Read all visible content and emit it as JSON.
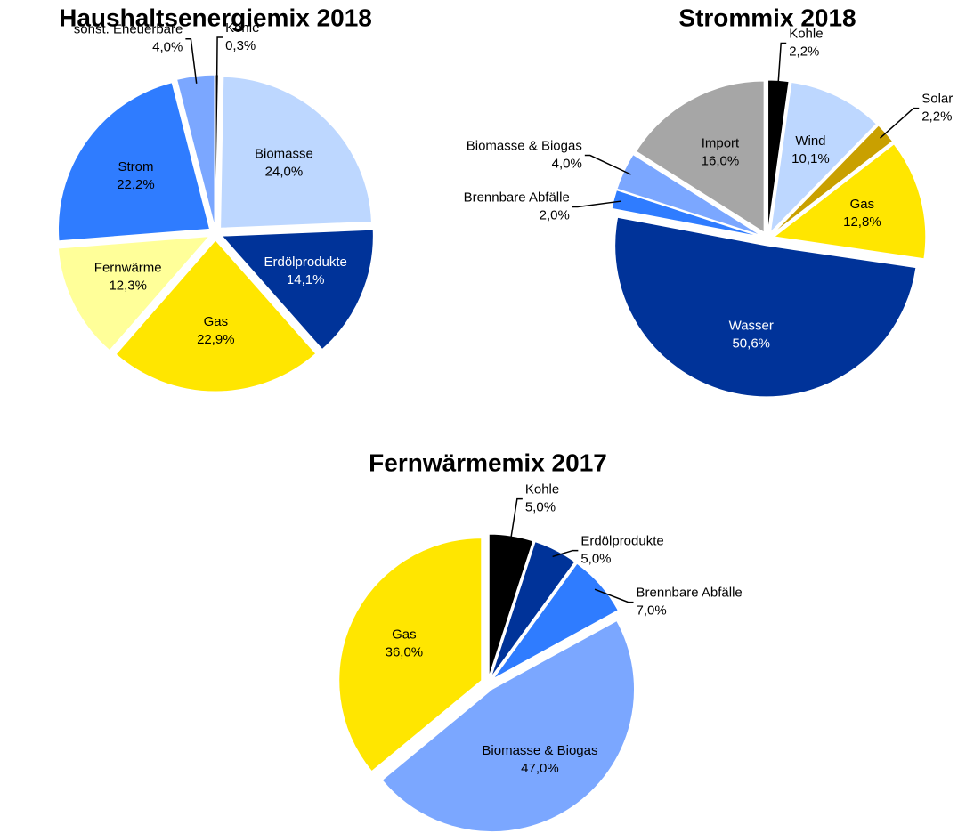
{
  "chart_data": [
    {
      "type": "pie",
      "title": "Haushaltsenergiemix 2018",
      "categories": [
        "Kohle",
        "Biomasse",
        "Erdölprodukte",
        "Gas",
        "Fernwärme",
        "Strom",
        "sonst. Eneuerbare"
      ],
      "values": [
        0.3,
        24.0,
        14.1,
        22.9,
        12.3,
        22.2,
        4.0
      ],
      "value_labels": [
        "0,3%",
        "24,0%",
        "14,1%",
        "22,9%",
        "12,3%",
        "22,2%",
        "4,0%"
      ],
      "colors": [
        "#000000",
        "#bdd7ff",
        "#003399",
        "#ffe600",
        "#ffff99",
        "#2f7cff",
        "#7ba7ff"
      ]
    },
    {
      "type": "pie",
      "title": "Strommix 2018",
      "categories": [
        "Kohle",
        "Wind",
        "Solar",
        "Gas",
        "Wasser",
        "Brennbare Abfälle",
        "Biomasse & Biogas",
        "Import"
      ],
      "values": [
        2.2,
        10.1,
        2.2,
        12.8,
        50.6,
        2.0,
        4.0,
        16.0
      ],
      "value_labels": [
        "2,2%",
        "10,1%",
        "2,2%",
        "12,8%",
        "50,6%",
        "2,0%",
        "4,0%",
        "16,0%"
      ],
      "colors": [
        "#000000",
        "#bdd7ff",
        "#c9a000",
        "#ffe600",
        "#003399",
        "#2f7cff",
        "#7ba7ff",
        "#a6a6a6"
      ]
    },
    {
      "type": "pie",
      "title": "Fernwärmemix 2017",
      "categories": [
        "Kohle",
        "Erdölprodukte",
        "Brennbare Abfälle",
        "Biomasse & Biogas",
        "Gas"
      ],
      "values": [
        5.0,
        5.0,
        7.0,
        47.0,
        36.0
      ],
      "value_labels": [
        "5,0%",
        "5,0%",
        "7,0%",
        "47,0%",
        "36,0%"
      ],
      "colors": [
        "#000000",
        "#003399",
        "#2f7cff",
        "#7ba7ff",
        "#ffe600"
      ]
    }
  ]
}
